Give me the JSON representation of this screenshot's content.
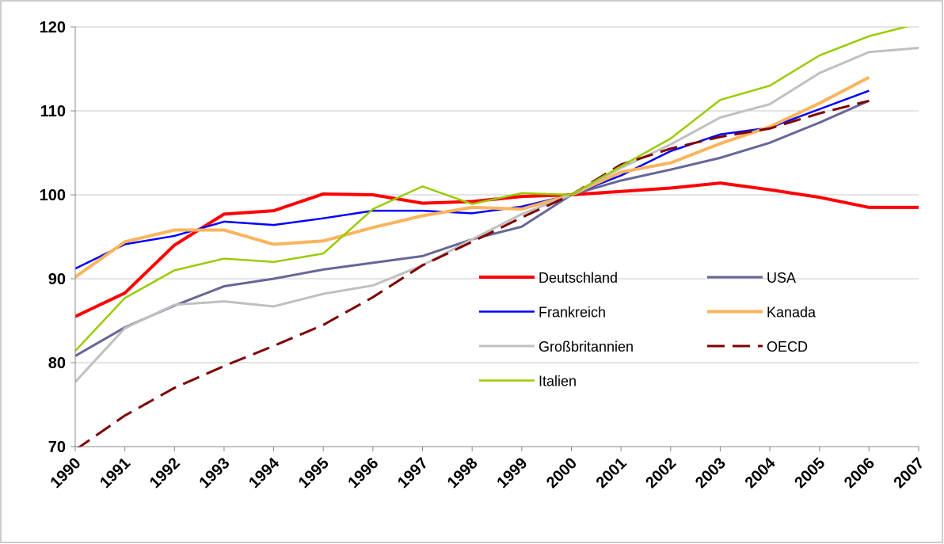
{
  "chart_data": {
    "type": "line",
    "categories": [
      "1990",
      "1991",
      "1992",
      "1993",
      "1994",
      "1995",
      "1996",
      "1997",
      "1998",
      "1999",
      "2000",
      "2001",
      "2002",
      "2003",
      "2004",
      "2005",
      "2006",
      "2007"
    ],
    "ylim": [
      70,
      120
    ],
    "yticks": [
      70,
      80,
      90,
      100,
      110,
      120
    ],
    "grid": true,
    "series": [
      {
        "name": "Deutschland",
        "color": "#ff0000",
        "linewidth": 4,
        "linestyle": "solid",
        "values": [
          85.5,
          88.3,
          94,
          97.7,
          98.1,
          100.1,
          100,
          99,
          99.2,
          99.8,
          100,
          100.4,
          100.8,
          101.4,
          100.6,
          99.7,
          98.5,
          98.5
        ]
      },
      {
        "name": "USA",
        "color": "#666699",
        "linewidth": 3,
        "linestyle": "solid",
        "values": [
          80.8,
          84.2,
          86.8,
          89.1,
          90,
          91.1,
          91.9,
          92.7,
          94.7,
          96.2,
          100,
          101.7,
          103,
          104.4,
          106.2,
          108.6,
          111.2,
          null
        ]
      },
      {
        "name": "Frankreich",
        "color": "#0000ff",
        "linewidth": 2.5,
        "linestyle": "solid",
        "values": [
          91.2,
          94.1,
          95.1,
          96.8,
          96.4,
          97.2,
          98.1,
          98.1,
          97.8,
          98.6,
          100,
          102.3,
          105.2,
          107.2,
          108,
          110.2,
          112.4,
          null
        ]
      },
      {
        "name": "Kanada",
        "color": "#fbb45c",
        "linewidth": 4,
        "linestyle": "solid",
        "values": [
          90.2,
          94.4,
          95.8,
          95.8,
          94.1,
          94.5,
          96.1,
          97.5,
          98.5,
          98.3,
          100,
          102.7,
          103.8,
          106.1,
          108.1,
          110.9,
          114,
          null
        ]
      },
      {
        "name": "Großbritannien",
        "color": "#c0c0c0",
        "linewidth": 3,
        "linestyle": "solid",
        "values": [
          77.7,
          84.1,
          86.9,
          87.3,
          86.7,
          88.2,
          89.2,
          91.6,
          94.7,
          97.7,
          100,
          103.2,
          106,
          109.2,
          110.8,
          114.5,
          117,
          117.5
        ]
      },
      {
        "name": "OECD",
        "color": "#800000",
        "linewidth": 3,
        "linestyle": "dashed",
        "values": [
          69.6,
          73.7,
          77,
          79.6,
          82,
          84.5,
          87.8,
          91.6,
          94.4,
          97.3,
          100,
          103.6,
          105.5,
          106.9,
          107.9,
          109.7,
          111.2,
          null
        ]
      },
      {
        "name": "Italien",
        "color": "#99cc00",
        "linewidth": 2.5,
        "linestyle": "solid",
        "values": [
          81.4,
          87.7,
          91,
          92.4,
          92,
          93,
          98.3,
          101,
          98.9,
          100.2,
          100,
          103.4,
          106.7,
          111.3,
          113,
          116.6,
          118.9,
          120.4
        ]
      }
    ]
  }
}
